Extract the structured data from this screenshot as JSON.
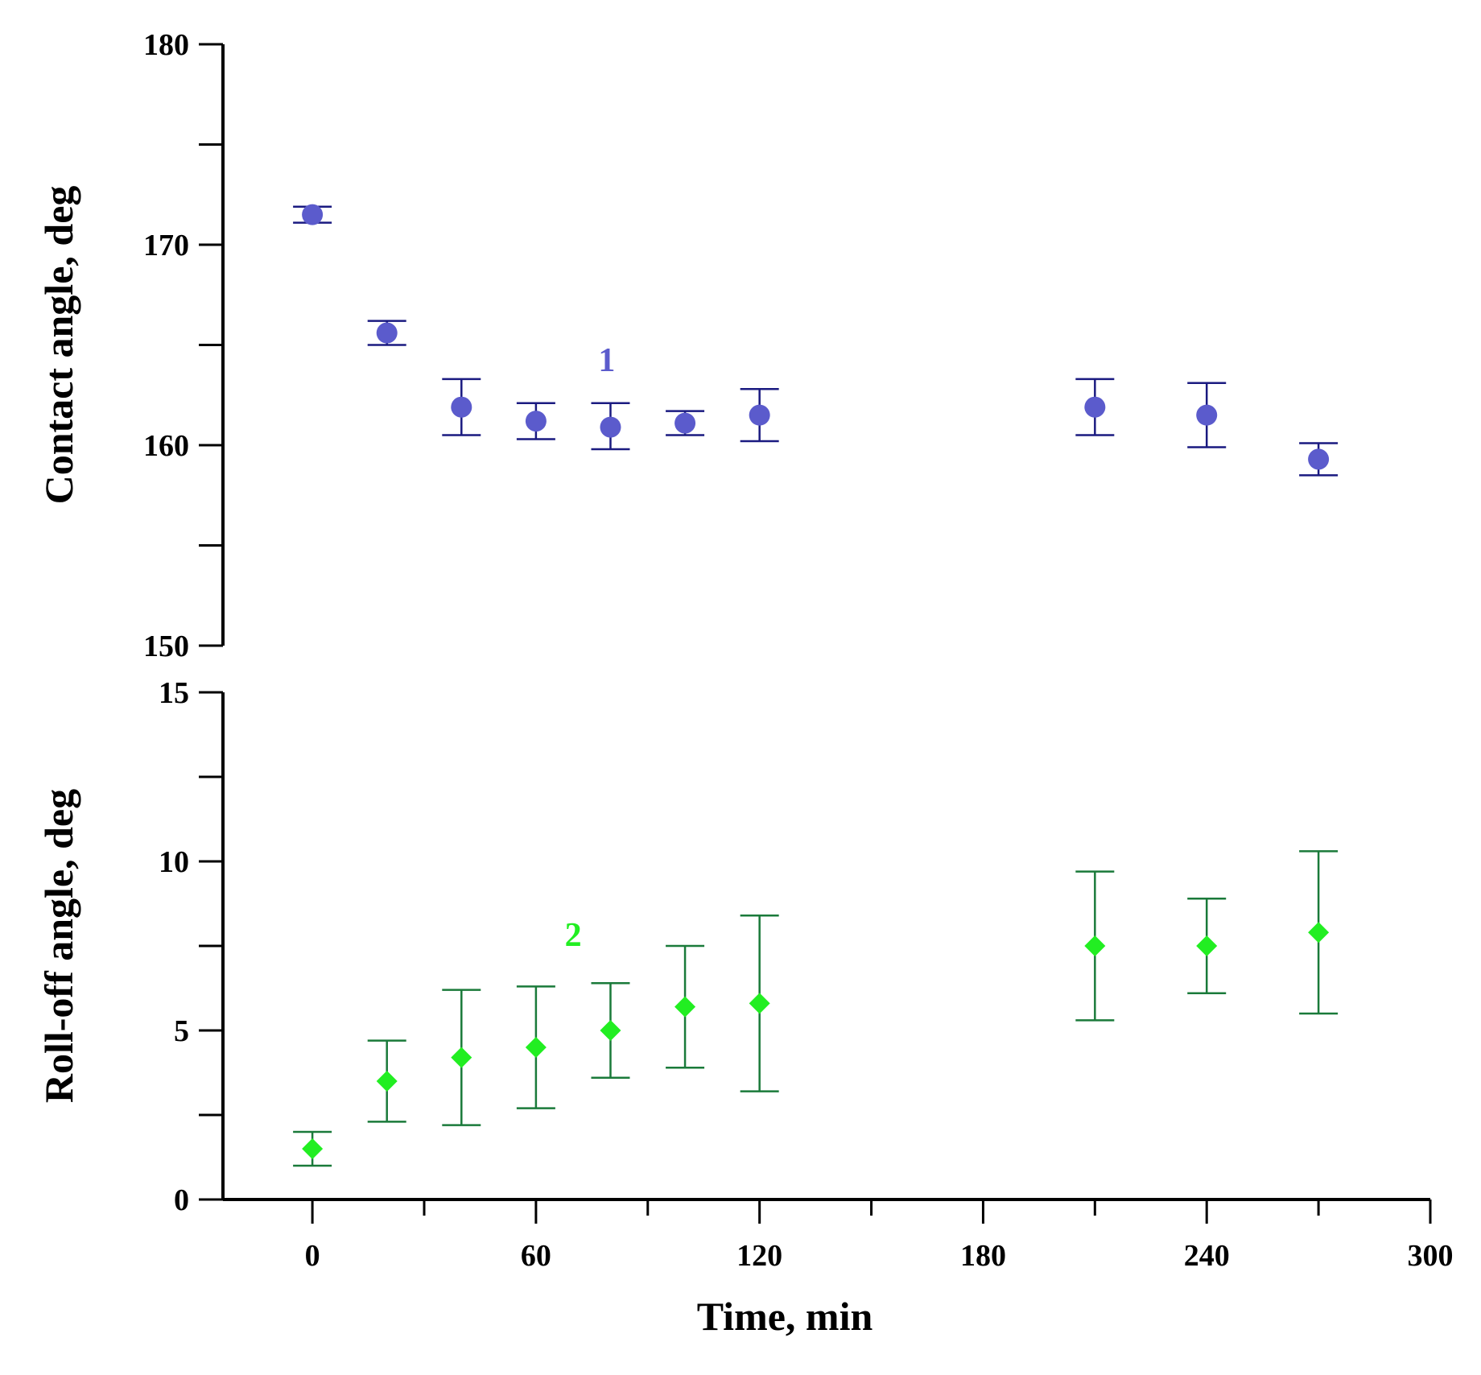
{
  "chart_data": {
    "type": "scatter",
    "x_axis": {
      "label": "Time, min",
      "range": [
        -24,
        300
      ],
      "major_ticks": [
        0,
        60,
        120,
        180,
        240,
        300
      ],
      "minor_ticks": [
        30,
        90,
        150,
        210,
        270
      ]
    },
    "panels": [
      {
        "id": "top",
        "ylabel": "Contact angle, deg",
        "ylim": [
          150,
          180
        ],
        "y_major_ticks": [
          150,
          160,
          170,
          180
        ],
        "y_minor_ticks": [
          155,
          165,
          175
        ],
        "series": {
          "name": "1",
          "label_text": "1",
          "label_pos": {
            "x": 79,
            "y": 163.7
          },
          "marker": "circle",
          "color": "#5b5bcc",
          "error_color": "#1a1a80",
          "points": [
            {
              "x": 0,
              "y": 171.5,
              "err_low": 171.1,
              "err_high": 171.9
            },
            {
              "x": 20,
              "y": 165.6,
              "err_low": 165.0,
              "err_high": 166.2
            },
            {
              "x": 40,
              "y": 161.9,
              "err_low": 160.5,
              "err_high": 163.3
            },
            {
              "x": 60,
              "y": 161.2,
              "err_low": 160.3,
              "err_high": 162.1
            },
            {
              "x": 80,
              "y": 160.9,
              "err_low": 159.8,
              "err_high": 162.1
            },
            {
              "x": 100,
              "y": 161.1,
              "err_low": 160.5,
              "err_high": 161.7
            },
            {
              "x": 120,
              "y": 161.5,
              "err_low": 160.2,
              "err_high": 162.8
            },
            {
              "x": 210,
              "y": 161.9,
              "err_low": 160.5,
              "err_high": 163.3
            },
            {
              "x": 240,
              "y": 161.5,
              "err_low": 159.9,
              "err_high": 163.1
            },
            {
              "x": 270,
              "y": 159.3,
              "err_low": 158.5,
              "err_high": 160.1
            }
          ]
        }
      },
      {
        "id": "bottom",
        "ylabel": "Roll-off angle, deg",
        "ylim": [
          0,
          15
        ],
        "y_major_ticks": [
          0,
          5,
          10,
          15
        ],
        "y_minor_ticks": [
          2.5,
          7.5,
          12.5
        ],
        "series": {
          "name": "2",
          "label_text": "2",
          "label_pos": {
            "x": 70,
            "y": 7.5
          },
          "marker": "diamond",
          "color": "#22ee22",
          "error_color": "#1a7a3a",
          "points": [
            {
              "x": 0,
              "y": 1.5,
              "err_low": 1.0,
              "err_high": 2.0
            },
            {
              "x": 20,
              "y": 3.5,
              "err_low": 2.3,
              "err_high": 4.7
            },
            {
              "x": 40,
              "y": 4.2,
              "err_low": 2.2,
              "err_high": 6.2
            },
            {
              "x": 60,
              "y": 4.5,
              "err_low": 2.7,
              "err_high": 6.3
            },
            {
              "x": 80,
              "y": 5.0,
              "err_low": 3.6,
              "err_high": 6.4
            },
            {
              "x": 100,
              "y": 5.7,
              "err_low": 3.9,
              "err_high": 7.5
            },
            {
              "x": 120,
              "y": 5.8,
              "err_low": 3.2,
              "err_high": 8.4
            },
            {
              "x": 210,
              "y": 7.5,
              "err_low": 5.3,
              "err_high": 9.7
            },
            {
              "x": 240,
              "y": 7.5,
              "err_low": 6.1,
              "err_high": 8.9
            },
            {
              "x": 270,
              "y": 7.9,
              "err_low": 5.5,
              "err_high": 10.3
            }
          ]
        }
      }
    ]
  }
}
